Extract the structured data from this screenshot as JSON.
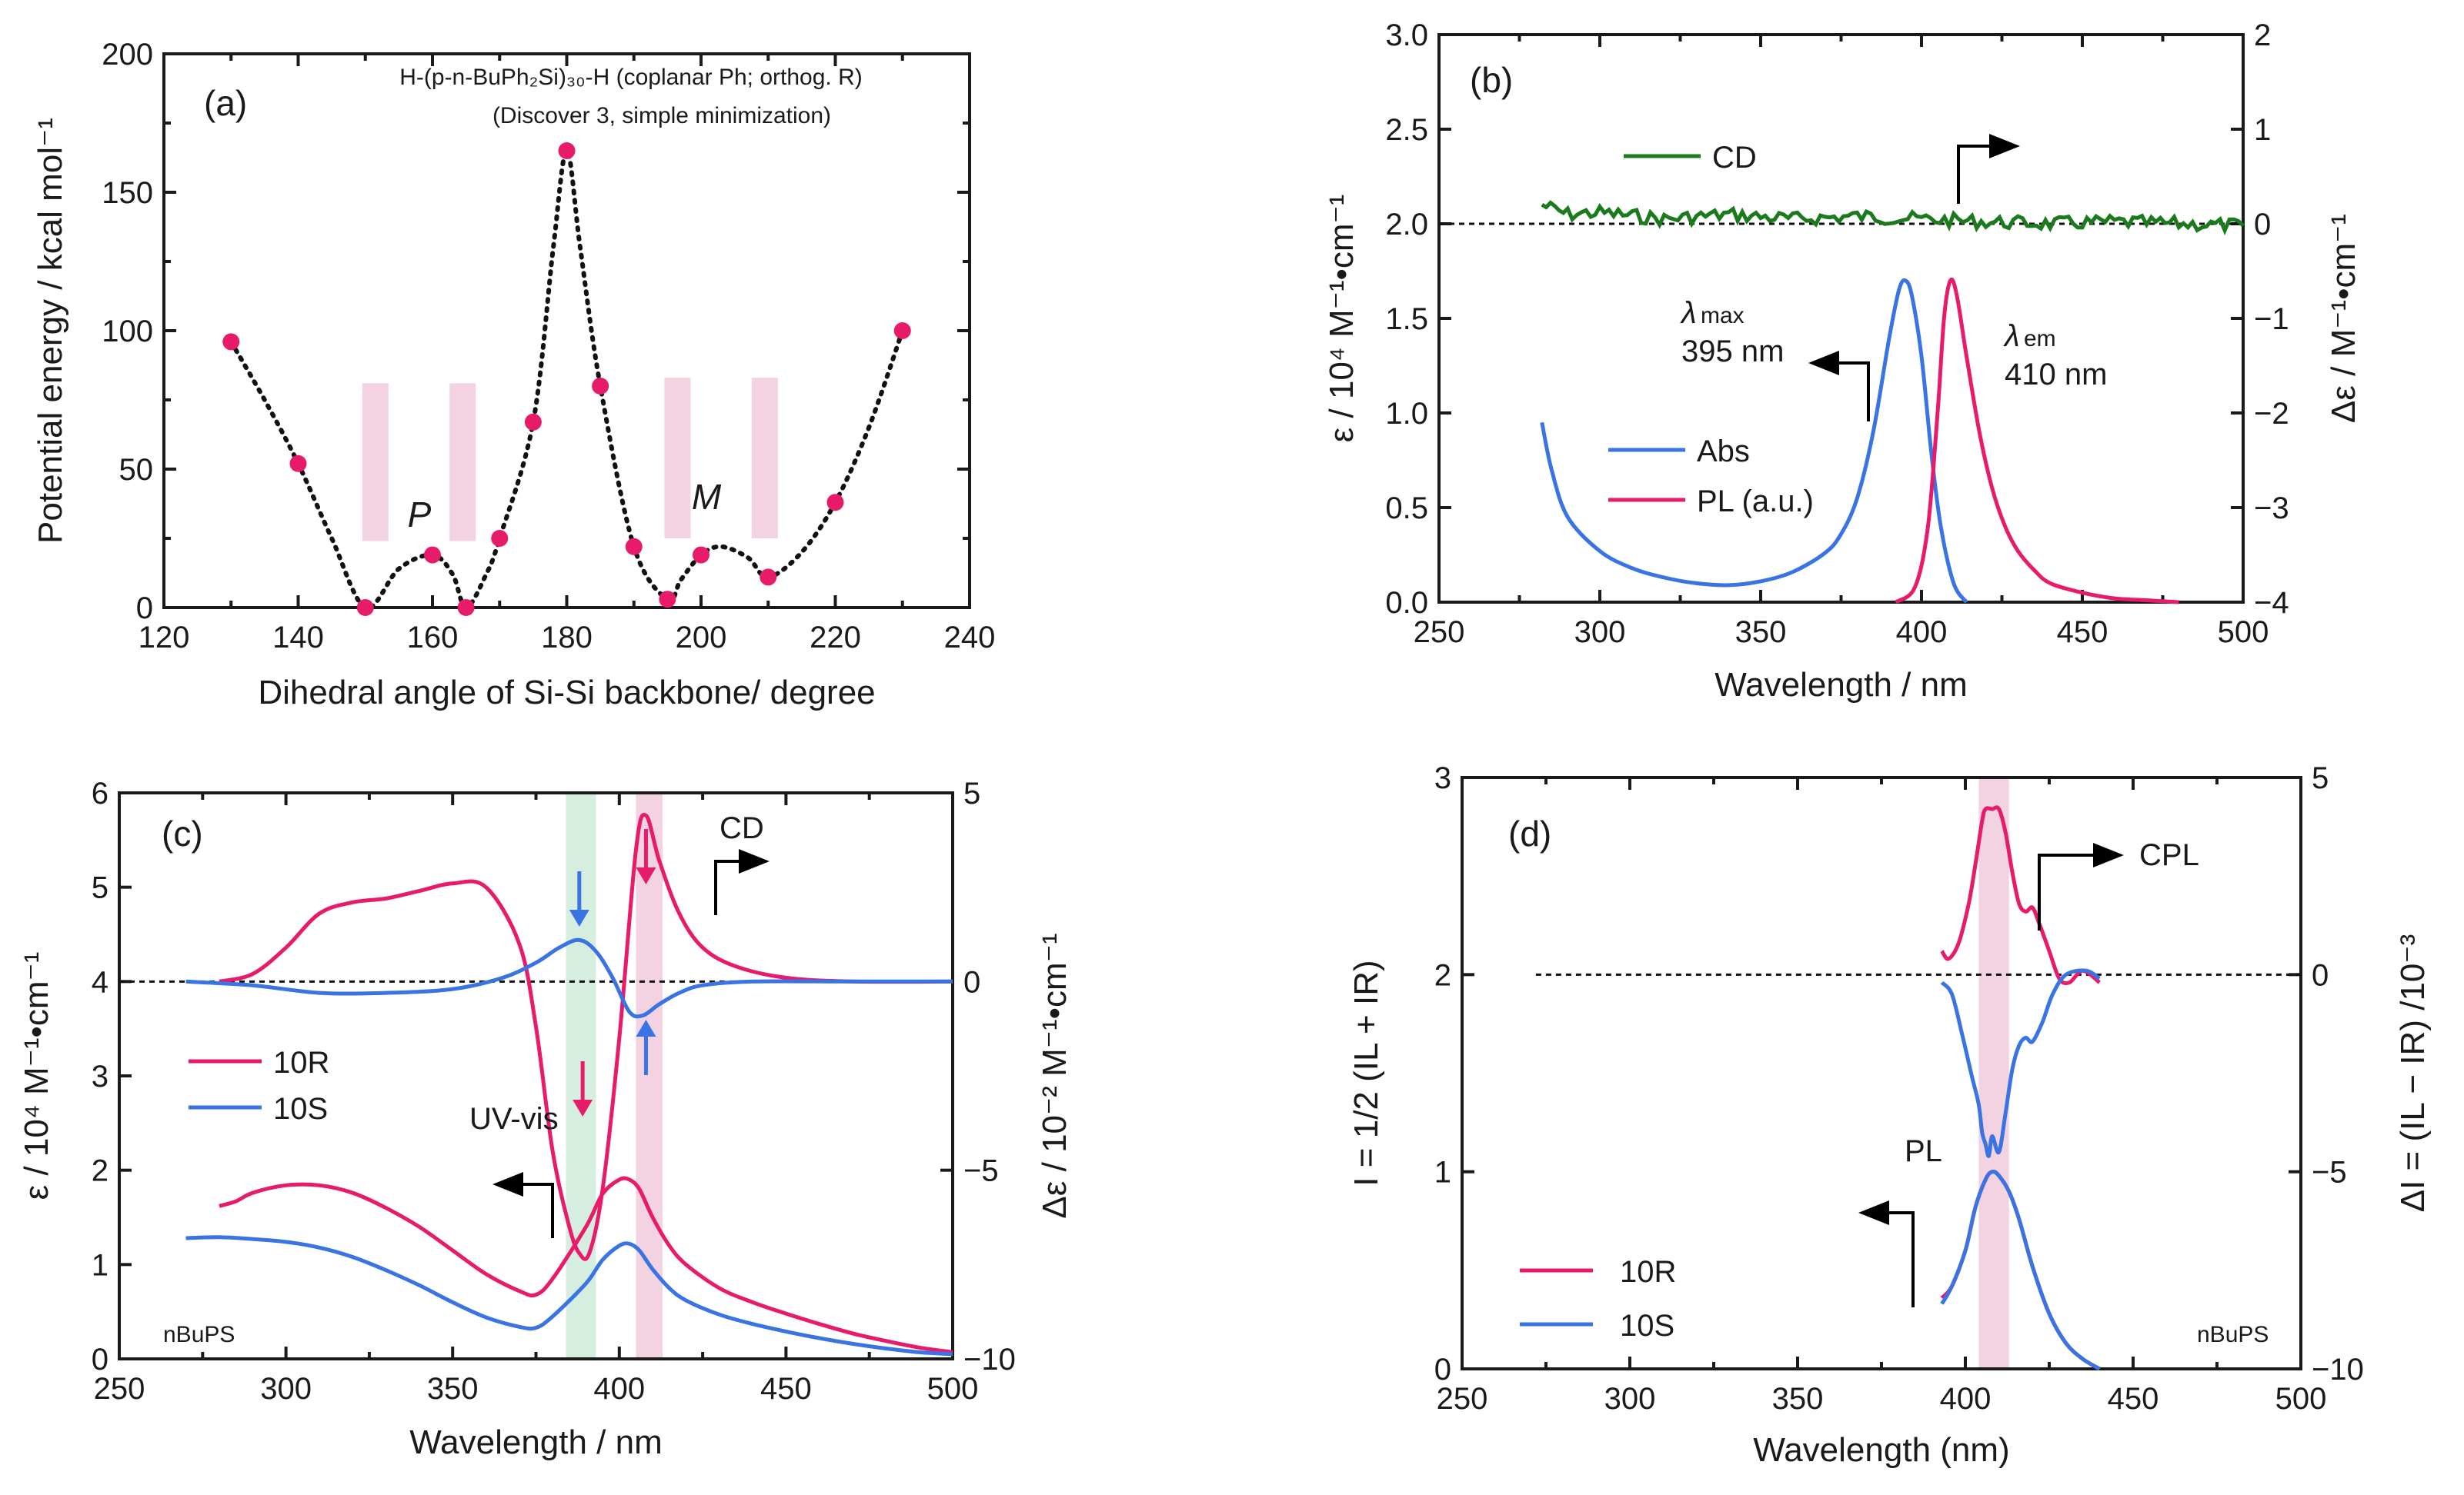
{
  "chart_data": [
    {
      "type": "scatter",
      "panel": "(a)",
      "title_line1": "H-(p-n-BuPh₂Si)₃₀-H (coplanar Ph; orthog. R)",
      "title_line2": "(Discover 3, simple minimization)",
      "xlabel": "Dihedral angle of Si-Si backbone/ degree",
      "ylabel": "Potential energy / kcal mol⁻¹",
      "xlim": [
        120,
        240
      ],
      "ylim": [
        0,
        200
      ],
      "xticks": [
        120,
        140,
        160,
        180,
        200,
        220,
        240
      ],
      "yticks": [
        0,
        50,
        100,
        150,
        200
      ],
      "annotations": [
        "P",
        "M"
      ],
      "series": [
        {
          "name": "energy points",
          "x": [
            130,
            140,
            150,
            160,
            165,
            170,
            175,
            180,
            185,
            190,
            195,
            200,
            210,
            220,
            230
          ],
          "y": [
            96,
            52,
            0,
            19,
            0,
            25,
            67,
            165,
            80,
            22,
            3,
            19,
            11,
            38,
            100
          ]
        }
      ]
    },
    {
      "type": "line",
      "panel": "(b)",
      "xlabel": "Wavelength / nm",
      "ylabel": "ε / 10⁴ M⁻¹•cm⁻¹",
      "y2label": "Δε / M⁻¹•cm⁻¹",
      "xlim": [
        250,
        500
      ],
      "ylim": [
        0,
        3
      ],
      "y2lim": [
        -4,
        2
      ],
      "xticks": [
        250,
        300,
        350,
        400,
        450,
        500
      ],
      "yticks": [
        "0.0",
        "0.5",
        "1.0",
        "1.5",
        "2.0",
        "2.5",
        "3.0"
      ],
      "y2ticks": [
        -4,
        -3,
        -2,
        -1,
        0,
        1,
        2
      ],
      "legend": [
        "CD",
        "Abs",
        "PL (a.u.)"
      ],
      "annotations": {
        "lmax_sym": "λ",
        "lmax_sub": "max",
        "lmax_val": "395 nm",
        "lem_sym": "λ",
        "lem_sub": "em",
        "lem_val": "410 nm"
      },
      "series": [
        {
          "name": "Abs",
          "x": [
            282,
            285,
            290,
            300,
            310,
            320,
            330,
            340,
            350,
            360,
            370,
            375,
            380,
            385,
            390,
            393,
            395,
            397,
            400,
            403,
            406,
            410,
            414
          ],
          "y": [
            0.95,
            0.7,
            0.45,
            0.27,
            0.18,
            0.13,
            0.1,
            0.09,
            0.11,
            0.16,
            0.26,
            0.36,
            0.55,
            0.9,
            1.4,
            1.65,
            1.7,
            1.62,
            1.3,
            0.8,
            0.4,
            0.1,
            0.0
          ]
        },
        {
          "name": "PL (a.u.)",
          "x": [
            392,
            398,
            402,
            405,
            407,
            409,
            411,
            414,
            418,
            422,
            426,
            430,
            435,
            440,
            450,
            460,
            470,
            480
          ],
          "y": [
            0.0,
            0.08,
            0.4,
            1.0,
            1.5,
            1.7,
            1.62,
            1.3,
            0.9,
            0.6,
            0.4,
            0.27,
            0.17,
            0.1,
            0.05,
            0.02,
            0.01,
            0.0
          ]
        },
        {
          "name": "CD",
          "x": [
            282,
            290,
            300,
            320,
            340,
            360,
            380,
            400,
            420,
            440,
            460,
            480,
            500
          ],
          "y": [
            0.2,
            0.1,
            0.12,
            0.05,
            0.1,
            0.05,
            0.08,
            0.05,
            0.02,
            0.0,
            0.02,
            0.0,
            -0.02
          ]
        }
      ]
    },
    {
      "type": "line",
      "panel": "(c)",
      "xlabel": "Wavelength / nm",
      "ylabel": "ε / 10⁴ M⁻¹•cm⁻¹",
      "y2label": "Δε / 10⁻² M⁻¹•cm⁻¹",
      "xlim": [
        250,
        500
      ],
      "ylim": [
        0,
        6
      ],
      "y2lim": [
        -10,
        5
      ],
      "xticks": [
        250,
        300,
        350,
        400,
        450,
        500
      ],
      "yticks": [
        0,
        1,
        2,
        3,
        4,
        5,
        6
      ],
      "y2ticks": [
        -10,
        -5,
        0,
        5
      ],
      "legend": [
        "10R",
        "10S"
      ],
      "annotations": [
        "CD",
        "UV-vis",
        "nBuPS"
      ],
      "series": [
        {
          "name": "10R CD",
          "x": [
            280,
            290,
            300,
            310,
            320,
            330,
            340,
            350,
            360,
            370,
            375,
            380,
            385,
            388,
            391,
            395,
            400,
            405,
            408,
            412,
            418,
            425,
            435,
            450,
            470,
            500
          ],
          "y": [
            0.0,
            0.2,
            0.9,
            1.8,
            2.1,
            2.2,
            2.4,
            2.6,
            2.5,
            1.0,
            -1.2,
            -4.5,
            -6.5,
            -7.2,
            -7.2,
            -5.5,
            -1.5,
            3.5,
            4.4,
            3.2,
            1.8,
            0.9,
            0.4,
            0.1,
            0.0,
            0.0
          ]
        },
        {
          "name": "10S CD",
          "x": [
            270,
            290,
            310,
            330,
            350,
            365,
            375,
            382,
            388,
            393,
            398,
            403,
            407,
            412,
            418,
            425,
            440,
            470,
            500
          ],
          "y": [
            0.0,
            -0.1,
            -0.3,
            -0.3,
            -0.2,
            0.1,
            0.5,
            0.9,
            1.1,
            0.8,
            0.1,
            -0.8,
            -0.9,
            -0.6,
            -0.3,
            -0.1,
            0.0,
            0.0,
            0.0
          ]
        },
        {
          "name": "10R UV-vis",
          "x": [
            280,
            285,
            290,
            300,
            310,
            320,
            330,
            340,
            350,
            360,
            370,
            375,
            380,
            390,
            395,
            400,
            403,
            406,
            410,
            415,
            420,
            430,
            440,
            450,
            460,
            470,
            480,
            490,
            500
          ],
          "y": [
            1.62,
            1.67,
            1.76,
            1.84,
            1.84,
            1.76,
            1.6,
            1.4,
            1.15,
            0.9,
            0.72,
            0.68,
            0.85,
            1.4,
            1.75,
            1.9,
            1.9,
            1.8,
            1.5,
            1.2,
            1.0,
            0.75,
            0.6,
            0.48,
            0.37,
            0.27,
            0.19,
            0.12,
            0.07
          ]
        },
        {
          "name": "10S UV-vis",
          "x": [
            270,
            280,
            290,
            300,
            310,
            320,
            330,
            340,
            350,
            360,
            370,
            375,
            380,
            390,
            395,
            400,
            403,
            406,
            410,
            415,
            420,
            430,
            440,
            450,
            460,
            470,
            480,
            490,
            500
          ],
          "y": [
            1.28,
            1.29,
            1.27,
            1.24,
            1.18,
            1.08,
            0.94,
            0.78,
            0.6,
            0.44,
            0.34,
            0.33,
            0.45,
            0.8,
            1.05,
            1.2,
            1.22,
            1.15,
            0.95,
            0.75,
            0.62,
            0.47,
            0.37,
            0.29,
            0.22,
            0.16,
            0.11,
            0.07,
            0.05
          ]
        }
      ]
    },
    {
      "type": "line",
      "panel": "(d)",
      "xlabel": "Wavelength (nm)",
      "ylabel": "I = 1/2 (IL + IR)",
      "y2label": "ΔI = (IL − IR) /10⁻³",
      "xlim": [
        250,
        500
      ],
      "ylim": [
        0,
        3
      ],
      "y2lim": [
        -10,
        5
      ],
      "xticks": [
        250,
        300,
        350,
        400,
        450,
        500
      ],
      "yticks": [
        0,
        1,
        2,
        3
      ],
      "y2ticks": [
        -10,
        -5,
        0,
        5
      ],
      "legend": [
        "10R",
        "10S"
      ],
      "annotations": [
        "CPL",
        "PL",
        "nBuPS"
      ],
      "series": [
        {
          "name": "10R CPL",
          "x": [
            393,
            395,
            398,
            401,
            403,
            405,
            406,
            408,
            410,
            412,
            414,
            416,
            418,
            420,
            422,
            425,
            428,
            431,
            435,
            440
          ],
          "y": [
            0.6,
            0.4,
            0.8,
            1.8,
            2.8,
            3.9,
            4.2,
            4.2,
            4.2,
            3.6,
            2.6,
            1.8,
            1.6,
            1.7,
            1.3,
            0.6,
            -0.1,
            -0.2,
            0.1,
            -0.2
          ]
        },
        {
          "name": "10S CPL",
          "x": [
            393,
            396,
            399,
            402,
            404,
            405,
            406,
            407,
            408,
            410,
            412,
            414,
            416,
            418,
            420,
            423,
            426,
            430,
            436,
            440
          ],
          "y": [
            -0.2,
            -0.5,
            -1.5,
            -2.6,
            -3.3,
            -4.0,
            -4.3,
            -4.6,
            -4.1,
            -4.5,
            -3.5,
            -2.4,
            -1.8,
            -1.6,
            -1.7,
            -1.2,
            -0.5,
            0.0,
            0.1,
            -0.1
          ]
        },
        {
          "name": "10R PL",
          "x": [
            393,
            396,
            400,
            403,
            406,
            408,
            410,
            413,
            416,
            420,
            425,
            430,
            435,
            440
          ],
          "y": [
            0.36,
            0.42,
            0.6,
            0.82,
            0.96,
            1.0,
            0.98,
            0.9,
            0.76,
            0.52,
            0.28,
            0.13,
            0.05,
            0.0
          ]
        },
        {
          "name": "10S PL",
          "x": [
            393,
            396,
            400,
            403,
            406,
            408,
            410,
            413,
            416,
            420,
            425,
            430,
            435,
            440
          ],
          "y": [
            0.33,
            0.42,
            0.6,
            0.82,
            0.96,
            1.0,
            0.98,
            0.9,
            0.76,
            0.52,
            0.28,
            0.13,
            0.05,
            0.0
          ]
        }
      ]
    }
  ],
  "colors": {
    "red": "#e81b6b",
    "blue": "#3a74e4",
    "green": "#1b7a1b",
    "pink_band": "#f3d2e2",
    "green_band": "#d6eedf"
  }
}
